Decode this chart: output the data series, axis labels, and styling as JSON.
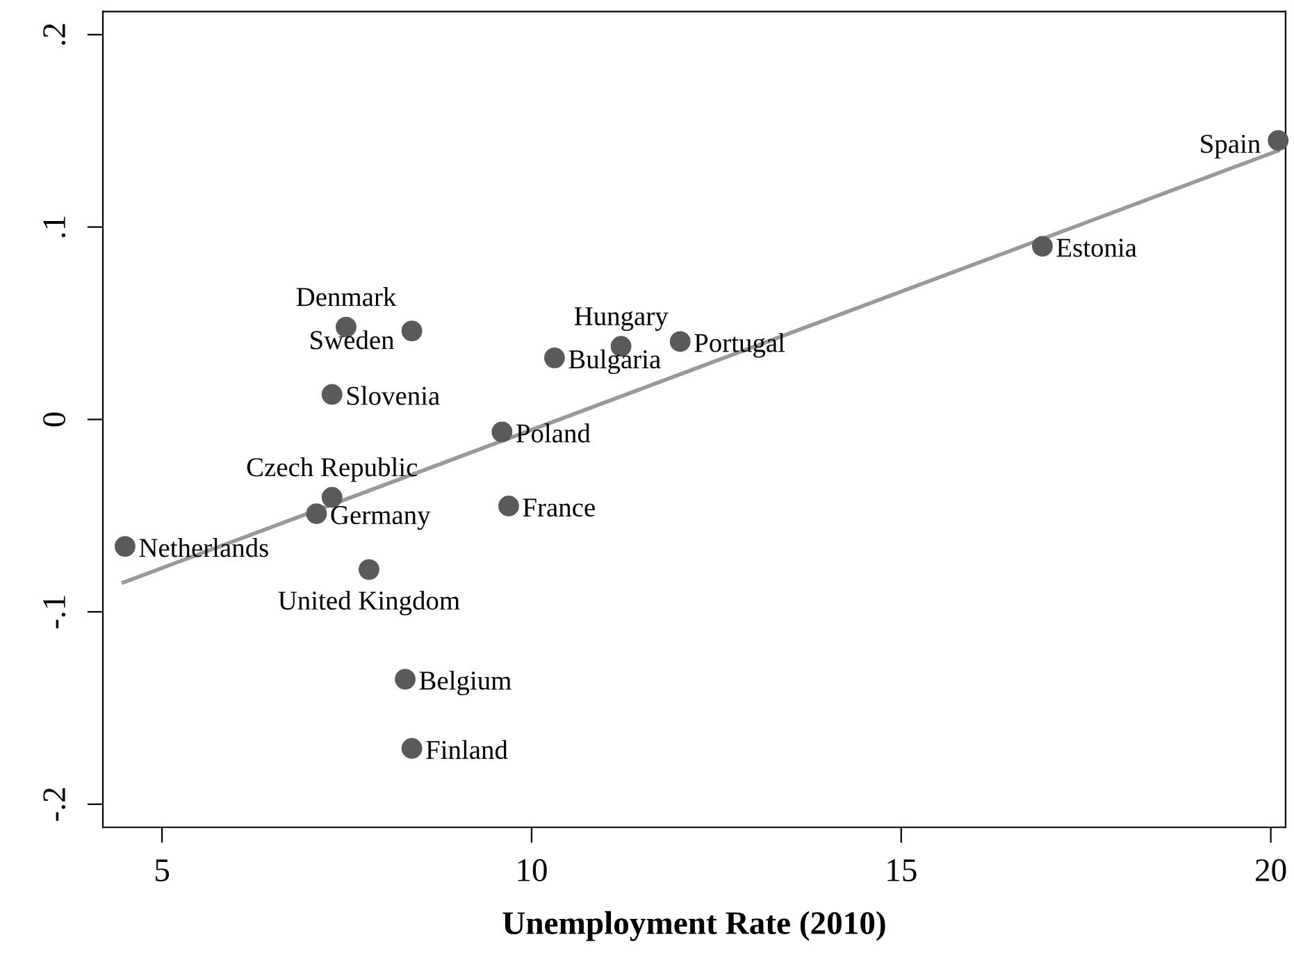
{
  "chart_data": {
    "type": "scatter",
    "xlabel": "Unemployment Rate (2010)",
    "xlim": [
      4.2,
      20.2
    ],
    "xticks": [
      5,
      10,
      15,
      20
    ],
    "ylim": [
      -0.212,
      0.212
    ],
    "yticks": [
      {
        "value": 0.2,
        "label": ".2"
      },
      {
        "value": 0.1,
        "label": ".1"
      },
      {
        "value": 0,
        "label": "0"
      },
      {
        "value": -0.1,
        "label": "-.1"
      },
      {
        "value": -0.2,
        "label": "-.2"
      }
    ],
    "grid": false,
    "legend": false,
    "marker": "circle",
    "series": [
      {
        "color": "#5a5a5a",
        "x": [
          4.5,
          7.3,
          7.09,
          7.8,
          9.69,
          8.29,
          8.38,
          7.49,
          8.38,
          7.3,
          9.6,
          10.31,
          11.21,
          12.01,
          16.91,
          20.1
        ],
        "values": [
          -0.066,
          -0.0405,
          -0.049,
          -0.078,
          -0.045,
          -0.135,
          -0.171,
          0.048,
          0.046,
          0.013,
          -0.0065,
          0.032,
          0.038,
          0.0405,
          0.09,
          0.145
        ],
        "value_labels": [
          "Netherlands",
          "Czech Republic",
          "Germany",
          "United Kingdom",
          "France",
          "Belgium",
          "Finland",
          "Denmark",
          "Sweden",
          "Slovenia",
          "Poland",
          "Bulgaria",
          "Hungary",
          "Portugal",
          "Estonia",
          "Spain"
        ]
      },
      {
        "type": "line",
        "color": "#999999",
        "line_style": "solid",
        "marker": "none",
        "x": [
          4.48,
          20.1
        ],
        "values": [
          -0.0847,
          0.1397
        ]
      }
    ]
  }
}
